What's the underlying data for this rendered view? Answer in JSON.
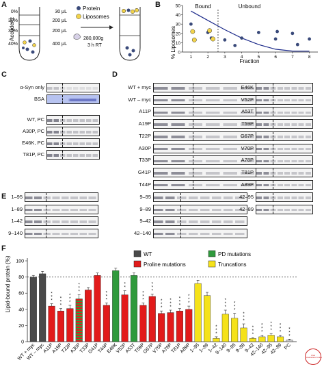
{
  "panel_labels": {
    "a": "A",
    "b": "B",
    "c": "C",
    "d": "D",
    "e": "E",
    "f": "F"
  },
  "panel_a": {
    "axis_label": "Accudenz",
    "layers": [
      {
        "pct": "0%",
        "vol": "30 μL"
      },
      {
        "pct": "30%",
        "vol": "200 μL"
      },
      {
        "pct": "35%",
        "vol": "200 μL"
      },
      {
        "pct": "40%",
        "vol": "400 μL"
      }
    ],
    "legend": [
      {
        "label": "Protein",
        "color": "#3a4a7a"
      },
      {
        "label": "Liposomes",
        "color": "#f2d34a"
      }
    ],
    "centrifuge": {
      "speed": "280,000g",
      "time": "3 h RT"
    }
  },
  "panel_b": {
    "ylabel": "% Liposomes",
    "xlabel": "Fraction",
    "region_bound": "Bound",
    "region_unbound": "Unbound",
    "xticks": [
      "1",
      "2",
      "3",
      "4",
      "5",
      "6",
      "7",
      "8"
    ],
    "yticks": [
      "0",
      "10",
      "20",
      "30",
      "40",
      "50"
    ]
  },
  "chart_data_b": {
    "type": "scatter",
    "xlim": [
      0.5,
      8.5
    ],
    "ylim": [
      0,
      50
    ],
    "series": [
      {
        "name": "Protein",
        "color": "#3a4a7a",
        "points": [
          [
            1,
            30
          ],
          [
            2,
            21
          ],
          [
            2.2,
            15
          ],
          [
            3,
            13
          ],
          [
            3.6,
            7
          ],
          [
            4,
            15
          ],
          [
            5,
            21
          ],
          [
            6,
            14
          ],
          [
            6.1,
            22
          ],
          [
            7,
            20
          ],
          [
            7.3,
            8
          ],
          [
            8,
            14
          ]
        ]
      },
      {
        "name": "Liposomes",
        "color": "#f2d34a",
        "points": [
          [
            1.1,
            22
          ],
          [
            1.2,
            13
          ],
          [
            2.1,
            23
          ],
          [
            2.3,
            14
          ]
        ]
      }
    ],
    "curve": [
      [
        1,
        44
      ],
      [
        2,
        34
      ],
      [
        3,
        24
      ],
      [
        4,
        15
      ],
      [
        5,
        8
      ],
      [
        6,
        3
      ],
      [
        7,
        1
      ],
      [
        8,
        1
      ]
    ]
  },
  "panel_c": {
    "rows": [
      "α-Syn only",
      "BSA",
      "WT, PC",
      "A30P, PC",
      "E46K, PC",
      "T81P, PC"
    ]
  },
  "panel_d": {
    "left_rows": [
      "WT + myc",
      "WT – myc",
      "A11P",
      "A19P",
      "T22P",
      "A30P",
      "T33P",
      "G41P",
      "T44P"
    ],
    "right_rows": [
      "E46K",
      "V52P",
      "A53T",
      "T59P",
      "G67P",
      "V70P",
      "A78P",
      "T81P",
      "A89P"
    ]
  },
  "panel_e": {
    "left_rows": [
      "1–95",
      "1–89",
      "1–42",
      "9–140"
    ],
    "mid_rows": [
      "9–95",
      "9–89",
      "9–42",
      "42–140"
    ],
    "right_rows": [
      "42–95",
      "42–89"
    ]
  },
  "chart_data": {
    "type": "bar",
    "ylabel": "Lipid-bound protein (%)",
    "ylim": [
      0,
      100
    ],
    "yticks": [
      0,
      20,
      40,
      60,
      80,
      100
    ],
    "reference_line": 80,
    "legend": [
      {
        "label": "WT",
        "color": "#4a4a4a"
      },
      {
        "label": "PD mutations",
        "color": "#2f9a3c"
      },
      {
        "label": "Proline mutations",
        "color": "#e21b1b"
      },
      {
        "label": "Truncations",
        "color": "#f5e21a"
      }
    ],
    "categories": [
      "WT + myc",
      "WT – myc",
      "A11P",
      "A19P",
      "T22P",
      "A30P",
      "T33P",
      "G41P",
      "T44P",
      "E46K",
      "V52P",
      "A53T",
      "T59P",
      "G67P",
      "V70P",
      "A78P",
      "T81P",
      "A89P",
      "1–95",
      "1–89",
      "1–42",
      "9–140",
      "9–95",
      "9–89",
      "9–42",
      "42–140",
      "42–95",
      "42–89",
      "PC"
    ],
    "values": [
      80,
      84,
      44,
      38,
      41,
      53,
      64,
      82,
      45,
      88,
      58,
      82,
      45,
      56,
      35,
      36,
      38,
      40,
      72,
      57,
      4,
      34,
      29,
      17,
      4,
      6,
      8,
      6,
      2
    ],
    "errors": [
      2,
      3,
      3,
      3,
      4,
      5,
      3,
      3,
      3,
      3,
      5,
      3,
      3,
      3,
      3,
      3,
      3,
      4,
      4,
      4,
      2,
      5,
      6,
      5,
      1,
      2,
      2,
      2,
      1
    ],
    "groups": [
      "WT",
      "WT",
      "Pro",
      "Pro",
      "Pro",
      "Pro*",
      "Pro",
      "Pro",
      "Pro",
      "PD",
      "Pro",
      "PD",
      "Pro",
      "Pro",
      "Pro",
      "Pro",
      "Pro",
      "Pro",
      "Tr",
      "Tr",
      "Tr",
      "Tr",
      "Tr",
      "Tr",
      "Tr",
      "Tr",
      "Tr",
      "Tr",
      "Other"
    ],
    "stars": [
      "",
      "",
      "***",
      "***",
      "***",
      "***",
      "",
      "",
      "***",
      "",
      "**",
      "",
      "***",
      "***",
      "***",
      "***",
      "***",
      "***",
      "",
      "",
      "***",
      "***",
      "***",
      "***",
      "***",
      "***",
      "***",
      "***",
      "***"
    ]
  },
  "watermark": "CSH PERSPECTIVES"
}
